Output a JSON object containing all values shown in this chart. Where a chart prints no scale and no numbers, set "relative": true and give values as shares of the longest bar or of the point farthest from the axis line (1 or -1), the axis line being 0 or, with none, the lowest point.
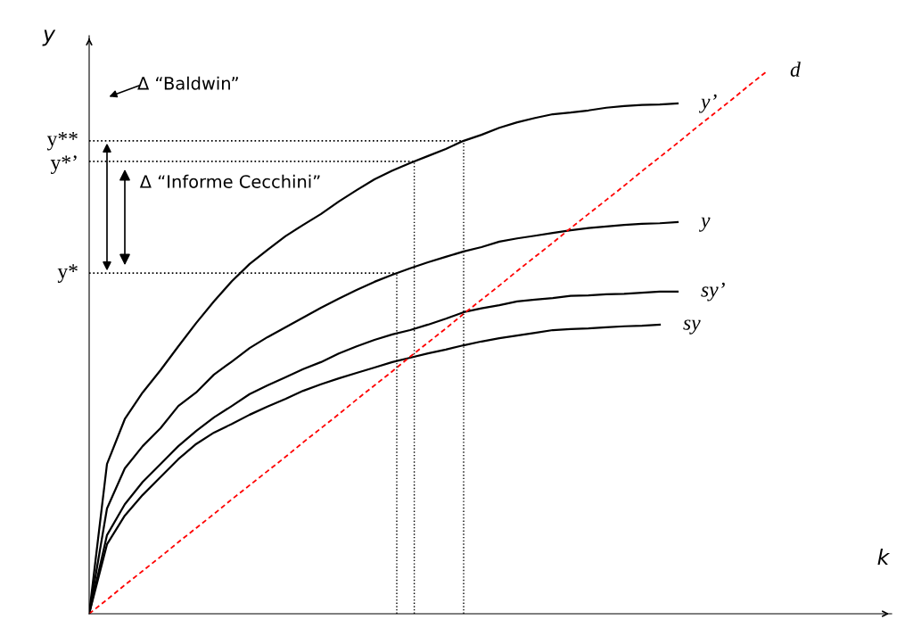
{
  "chart_data": {
    "type": "line",
    "relative": true,
    "xlabel": "k",
    "ylabel": "y",
    "legend": false,
    "marker": "none",
    "categories": [
      null,
      null,
      null,
      null,
      null,
      null,
      null,
      null,
      null,
      null,
      null,
      null,
      null,
      null,
      null,
      null,
      null,
      null,
      null,
      null,
      null,
      null,
      null,
      null,
      null,
      null,
      null,
      null,
      null,
      null,
      null,
      null,
      null,
      null,
      null,
      null,
      null,
      null,
      null
    ],
    "series": [
      {
        "name": "y’",
        "color": "#000000",
        "line_style": "solid",
        "values": [
          0,
          0.276,
          0.359,
          0.408,
          0.449,
          0.493,
          0.536,
          0.576,
          0.613,
          0.645,
          0.671,
          0.696,
          0.717,
          0.737,
          0.76,
          0.781,
          0.801,
          0.817,
          0.831,
          0.844,
          0.857,
          0.872,
          0.883,
          0.896,
          0.906,
          0.914,
          0.921,
          0.924,
          0.928,
          0.933,
          0.936,
          0.938,
          0.939,
          0.941,
          null,
          null,
          null,
          null,
          null
        ]
      },
      {
        "name": "y",
        "color": "#000000",
        "line_style": "solid",
        "values": [
          0,
          0.194,
          0.268,
          0.309,
          0.342,
          0.383,
          0.408,
          0.441,
          0.465,
          0.49,
          0.51,
          0.528,
          0.546,
          0.564,
          0.581,
          0.597,
          0.612,
          0.625,
          0.637,
          0.648,
          0.658,
          0.668,
          0.676,
          0.686,
          0.692,
          0.697,
          0.702,
          0.707,
          0.711,
          0.714,
          0.717,
          0.719,
          0.72,
          0.722,
          null,
          null,
          null,
          null,
          null
        ]
      },
      {
        "name": "sy’",
        "color": "#000000",
        "line_style": "solid",
        "values": [
          0,
          0.145,
          0.202,
          0.243,
          0.276,
          0.309,
          0.337,
          0.362,
          0.383,
          0.405,
          0.421,
          0.436,
          0.451,
          0.464,
          0.48,
          0.493,
          0.505,
          0.515,
          0.523,
          0.533,
          0.544,
          0.556,
          0.563,
          0.569,
          0.576,
          0.579,
          0.582,
          0.586,
          0.587,
          0.589,
          0.59,
          0.592,
          0.594,
          0.594,
          null,
          null,
          null,
          null,
          null
        ]
      },
      {
        "name": "sy",
        "color": "#000000",
        "line_style": "solid",
        "values": [
          0,
          0.128,
          0.181,
          0.219,
          0.252,
          0.285,
          0.313,
          0.334,
          0.35,
          0.367,
          0.382,
          0.396,
          0.411,
          0.423,
          0.434,
          0.444,
          0.454,
          0.464,
          0.472,
          0.48,
          0.487,
          0.495,
          0.502,
          0.508,
          0.513,
          0.518,
          0.523,
          0.525,
          0.526,
          0.528,
          0.53,
          0.531,
          0.533,
          null,
          null,
          null,
          null,
          null,
          null
        ]
      },
      {
        "name": "d",
        "color": "#ff0000",
        "line_style": "dashed",
        "values": [
          0,
          0.026,
          0.053,
          0.079,
          0.105,
          0.132,
          0.158,
          0.184,
          0.211,
          0.237,
          0.263,
          0.289,
          0.316,
          0.342,
          0.368,
          0.395,
          0.421,
          0.447,
          0.474,
          0.5,
          0.526,
          0.553,
          0.579,
          0.605,
          0.632,
          0.658,
          0.684,
          0.711,
          0.737,
          0.763,
          0.789,
          0.816,
          0.842,
          0.868,
          0.895,
          0.921,
          0.947,
          0.974,
          1
        ]
      }
    ],
    "ref_lines": [
      {
        "axis": "y",
        "value": 0.872,
        "label": "y**",
        "line_style": "dotted",
        "color": "#000000"
      },
      {
        "axis": "y",
        "value": 0.834,
        "label": "y*’",
        "line_style": "dotted",
        "color": "#000000"
      },
      {
        "axis": "y",
        "value": 0.628,
        "label": "y*",
        "line_style": "dotted",
        "color": "#000000"
      }
    ],
    "annotations": [
      "Δ “Baldwin”",
      "Δ “Informe Cecchini”"
    ]
  }
}
